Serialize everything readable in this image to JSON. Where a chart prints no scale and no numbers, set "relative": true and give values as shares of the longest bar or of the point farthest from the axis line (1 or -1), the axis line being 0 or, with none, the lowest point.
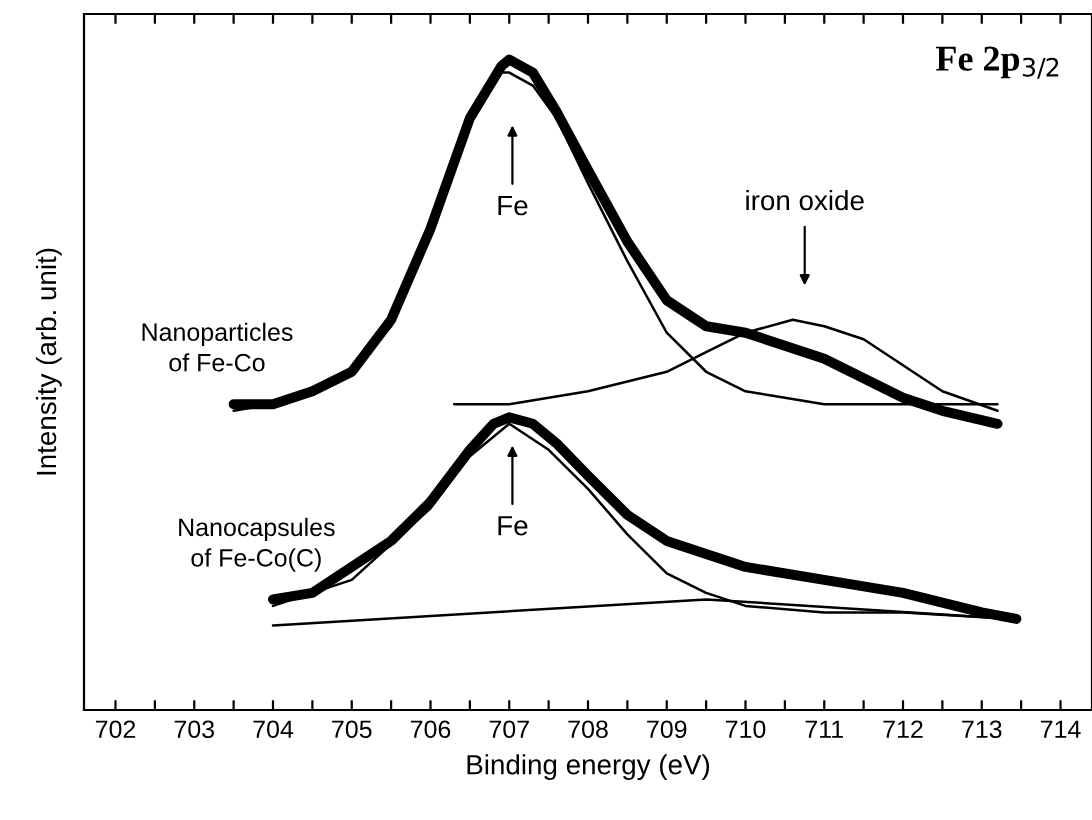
{
  "chart_data": {
    "type": "line",
    "relative": true,
    "title": "Fe 2p$_{3/2}$",
    "xlabel": "Binding energy (eV)",
    "ylabel": "Intensity (arb. unit)",
    "xlim": [
      701.6,
      714.4
    ],
    "xticks": [
      702,
      {
        "value": 702.5,
        "label": null
      },
      703,
      {
        "value": 703.5,
        "label": null
      },
      704,
      {
        "value": 704.5,
        "label": null
      },
      705,
      {
        "value": 705.5,
        "label": null
      },
      706,
      {
        "value": 706.5,
        "label": null
      },
      707,
      {
        "value": 707.5,
        "label": null
      },
      708,
      {
        "value": 708.5,
        "label": null
      },
      709,
      {
        "value": 709.5,
        "label": null
      },
      710,
      {
        "value": 710.5,
        "label": null
      },
      711,
      {
        "value": 711.5,
        "label": null
      },
      712,
      {
        "value": 712.5,
        "label": null
      },
      713,
      {
        "value": 713.5,
        "label": null
      },
      714
    ],
    "tick_labels": "x",
    "grid": false,
    "legend": false,
    "marker": "none",
    "line_style": "solid",
    "series": [
      {
        "name": "Nanoparticles\nof Fe-Co",
        "color": "#000000",
        "x": [
          703.5,
          704,
          704.5,
          705,
          705.5,
          706,
          706.5,
          706.9,
          707,
          707.3,
          707.6,
          708,
          708.5,
          709,
          709.5,
          710,
          710.5,
          711,
          711.5,
          712,
          712.5,
          713.2
        ],
        "values": [
          0.47,
          0.47,
          0.49,
          0.52,
          0.6,
          0.74,
          0.91,
          0.99,
          1.0,
          0.98,
          0.92,
          0.83,
          0.72,
          0.63,
          0.59,
          0.58,
          0.56,
          0.54,
          0.51,
          0.48,
          0.46,
          0.44
        ]
      },
      {
        "color": "#000000",
        "x": [
          703.5,
          704,
          704.5,
          705,
          705.5,
          706,
          706.5,
          706.9,
          707,
          707.3,
          707.6,
          708,
          708.5,
          709,
          709.5,
          710,
          710.5,
          711,
          712,
          713.2
        ],
        "values": [
          0.46,
          0.47,
          0.49,
          0.52,
          0.59,
          0.73,
          0.9,
          0.98,
          0.98,
          0.96,
          0.91,
          0.81,
          0.69,
          0.58,
          0.52,
          0.49,
          0.48,
          0.47,
          0.47,
          0.47
        ]
      },
      {
        "color": "#000000",
        "x": [
          706.3,
          707,
          708,
          709,
          709.5,
          710,
          710.6,
          711,
          711.5,
          712,
          712.5,
          713.2
        ],
        "values": [
          0.47,
          0.47,
          0.49,
          0.52,
          0.55,
          0.58,
          0.6,
          0.59,
          0.57,
          0.53,
          0.49,
          0.46
        ]
      },
      {
        "name": "Nanocapsules\nof Fe-Co(C)",
        "color": "#000000",
        "x": [
          704,
          704.5,
          705,
          705.5,
          706,
          706.5,
          706.8,
          707,
          707.3,
          707.6,
          708,
          708.5,
          709,
          709.5,
          710,
          711,
          712,
          713,
          713.44
        ],
        "values": [
          0.17,
          0.18,
          0.22,
          0.26,
          0.32,
          0.4,
          0.44,
          0.45,
          0.44,
          0.41,
          0.36,
          0.3,
          0.26,
          0.24,
          0.22,
          0.2,
          0.18,
          0.15,
          0.14
        ]
      },
      {
        "color": "#000000",
        "x": [
          704,
          705,
          706,
          706.5,
          707,
          707.5,
          708,
          708.5,
          709,
          709.5,
          710,
          711,
          712,
          713.4
        ],
        "values": [
          0.16,
          0.2,
          0.31,
          0.39,
          0.44,
          0.4,
          0.34,
          0.27,
          0.21,
          0.18,
          0.16,
          0.15,
          0.15,
          0.14
        ]
      },
      {
        "color": "#000000",
        "x": [
          704,
          709.5,
          713.4
        ],
        "values": [
          0.13,
          0.17,
          0.14
        ]
      }
    ],
    "annotations": [
      "Fe",
      "iron oxide",
      "Fe"
    ]
  }
}
